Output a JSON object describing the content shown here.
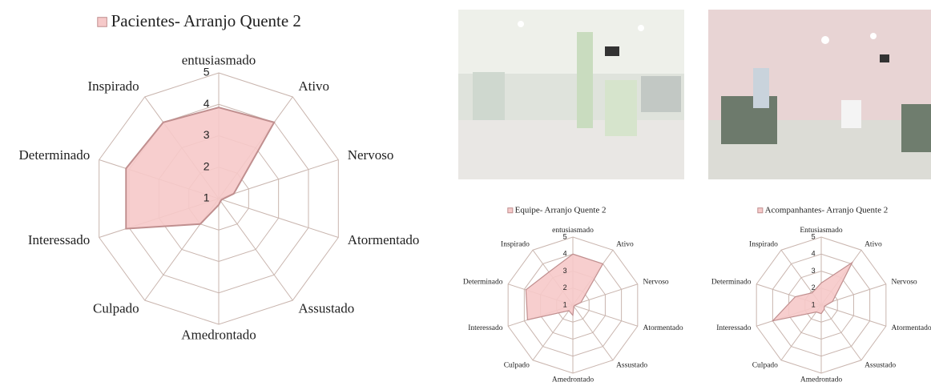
{
  "chart_data": [
    {
      "type": "radar",
      "categories": [
        "entusiasmado",
        "Ativo",
        "Nervoso",
        "Atormentado",
        "Assustado",
        "Amedrontado",
        "Culpado",
        "Interessado",
        "Determinado",
        "Inspirado"
      ],
      "series": [
        {
          "name": "Pacientes- Arranjo Quente 2",
          "color": "#f6c9c9",
          "values": [
            3.9,
            4.0,
            1.5,
            1.1,
            1.1,
            1.2,
            2.0,
            4.1,
            4.1,
            4.0
          ]
        }
      ],
      "ylim": [
        1,
        5
      ],
      "yticks": [
        1,
        2,
        3,
        4,
        5
      ],
      "grid": true
    },
    {
      "type": "radar",
      "categories": [
        "entusiasmado",
        "Ativo",
        "Nervoso",
        "Atormentado",
        "Assustado",
        "Amedrontado",
        "Culpado",
        "Interessado",
        "Determinado",
        "Inspirado"
      ],
      "series": [
        {
          "name": "Equipe- Arranjo Quente 2",
          "color": "#f6c9c9",
          "values": [
            4.0,
            4.0,
            1.5,
            1.1,
            1.1,
            1.6,
            1.4,
            3.8,
            3.9,
            3.4
          ]
        }
      ],
      "ylim": [
        1,
        5
      ],
      "yticks": [
        1,
        2,
        3,
        4,
        5
      ],
      "grid": true
    },
    {
      "type": "radar",
      "categories": [
        "Entusiasmado",
        "Ativo",
        "Nervoso",
        "Atormentado",
        "Assustado",
        "Amedrontado",
        "Culpado",
        "Interessado",
        "Determinado",
        "Inspirado"
      ],
      "series": [
        {
          "name": "Acompanhantes- Arranjo Quente 2",
          "color": "#f6c9c9",
          "values": [
            2.3,
            4.1,
            1.7,
            1.2,
            1.3,
            1.5,
            1.5,
            4.0,
            2.6,
            1.9
          ]
        }
      ],
      "ylim": [
        1,
        5
      ],
      "yticks": [
        1,
        2,
        3,
        4,
        5
      ],
      "grid": true
    }
  ]
}
